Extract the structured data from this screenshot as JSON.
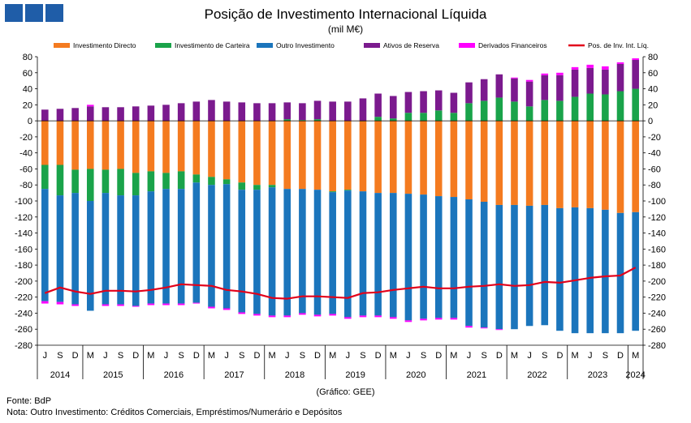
{
  "logo": {
    "label": "BdP",
    "color": "#1f5da8"
  },
  "title": "Posição de Investimento Internacional Líquida",
  "subtitle": "(mil M€)",
  "credit": "(Gráfico: GEE)",
  "source": "Fonte: BdP",
  "note": "Nota: Outro Investimento:  Créditos Comerciais, Empréstimos/Numerário  e Depósitos",
  "chart_data": {
    "type": "bar",
    "title": "Posição de Investimento Internacional Líquida",
    "ylabel": "mil M€",
    "ylim": [
      -280,
      80
    ],
    "yticks": [
      80,
      60,
      40,
      20,
      0,
      -20,
      -40,
      -60,
      -80,
      -100,
      -120,
      -140,
      -160,
      -180,
      -200,
      -220,
      -240,
      -260,
      -280
    ],
    "categories": [
      "J",
      "S",
      "D",
      "M",
      "J",
      "S",
      "D",
      "M",
      "J",
      "S",
      "D",
      "M",
      "J",
      "S",
      "D",
      "M",
      "J",
      "S",
      "D",
      "M",
      "J",
      "S",
      "D",
      "M",
      "J",
      "S",
      "D",
      "M",
      "J",
      "S",
      "D",
      "M",
      "J",
      "S",
      "D",
      "M",
      "J",
      "S",
      "D",
      "M"
    ],
    "years": [
      "2014",
      "2015",
      "2016",
      "2017",
      "2018",
      "2019",
      "2020",
      "2021",
      "2022",
      "2023",
      "2024"
    ],
    "series": [
      {
        "name": "Investimento Directo",
        "color": "#f47b20",
        "values": [
          -55,
          -55,
          -61,
          -60,
          -61,
          -60,
          -65,
          -63,
          -65,
          -63,
          -67,
          -70,
          -73,
          -77,
          -80,
          -80,
          -85,
          -85,
          -86,
          -88,
          -86,
          -88,
          -90,
          -90,
          -91,
          -92,
          -94,
          -95,
          -98,
          -101,
          -105,
          -105,
          -106,
          -105,
          -109,
          -108,
          -109,
          -111,
          -115,
          -114
        ]
      },
      {
        "name": "Investimento de Carteira",
        "color": "#1aa34a",
        "values": [
          -30,
          -38,
          -29,
          -40,
          -29,
          -33,
          -28,
          -25,
          -20,
          -22,
          -10,
          -10,
          -6,
          -9,
          -6,
          -3,
          2,
          1,
          2,
          -1,
          -1,
          0,
          5,
          3,
          10,
          10,
          13,
          10,
          22,
          25,
          29,
          24,
          18,
          26,
          25,
          30,
          34,
          33,
          37,
          40
        ]
      },
      {
        "name": "Outro Investimento",
        "color": "#1b75bc",
        "values": [
          -140,
          -133,
          -139,
          -137,
          -139,
          -136,
          -138,
          -140,
          -143,
          -143,
          -150,
          -152,
          -155,
          -153,
          -155,
          -160,
          -158,
          -155,
          -156,
          -152,
          -158,
          -155,
          -153,
          -155,
          -158,
          -155,
          -152,
          -151,
          -158,
          -157,
          -155,
          -155,
          -150,
          -150,
          -153,
          -157,
          -156,
          -154,
          -150,
          -148
        ]
      },
      {
        "name": "Ativos de Reserva",
        "color": "#7b1a8e",
        "values": [
          14,
          15,
          16,
          18,
          17,
          17,
          18,
          19,
          20,
          22,
          24,
          26,
          24,
          23,
          22,
          22,
          21,
          21,
          23,
          24,
          24,
          28,
          29,
          28,
          26,
          27,
          25,
          25,
          26,
          27,
          29,
          29,
          31,
          31,
          32,
          34,
          32,
          31,
          34,
          36
        ]
      },
      {
        "name": "Derivados Financeiros",
        "color": "#ff00ff",
        "values": [
          -3,
          -3,
          -2,
          2,
          -2,
          -2,
          -1,
          -2,
          -2,
          -2,
          -1,
          -2,
          -2,
          -2,
          -2,
          -2,
          -2,
          -2,
          -2,
          -2,
          -2,
          -2,
          -2,
          -2,
          -2,
          -2,
          -2,
          -2,
          -2,
          -1,
          -1,
          1,
          2,
          2,
          3,
          3,
          4,
          4,
          2,
          2
        ]
      }
    ],
    "line": {
      "name": "Pos. de Inv. Int. Líq.",
      "color": "#e2001a",
      "values": [
        -215,
        -208,
        -213,
        -216,
        -212,
        -212,
        -213,
        -211,
        -208,
        -204,
        -205,
        -206,
        -211,
        -213,
        -216,
        -221,
        -222,
        -219,
        -219,
        -220,
        -221,
        -215,
        -214,
        -211,
        -209,
        -207,
        -209,
        -209,
        -207,
        -206,
        -204,
        -206,
        -205,
        -201,
        -202,
        -199,
        -196,
        -194,
        -193,
        -183
      ]
    }
  }
}
